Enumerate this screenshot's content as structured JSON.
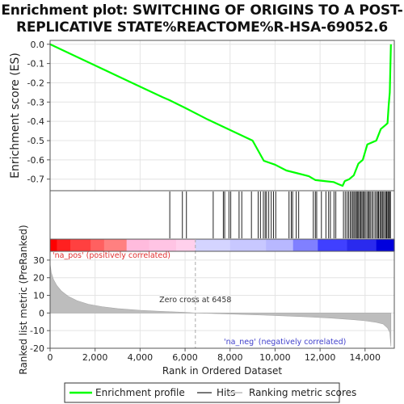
{
  "title_lines": [
    "Enrichment plot: SWITCHING OF ORIGINS TO A POST-",
    "REPLICATIVE STATE%REACTOME%R-HSA-69052.6"
  ],
  "chart_data": [
    {
      "type": "line",
      "name": "enrichment-profile",
      "ylabel": "Enrichment score (ES)",
      "xlim": [
        0,
        15300
      ],
      "ylim": [
        -0.76,
        0.02
      ],
      "yticks": [
        0.0,
        -0.1,
        -0.2,
        -0.3,
        -0.4,
        -0.5,
        -0.6,
        -0.7
      ],
      "ytick_labels": [
        "0.0",
        "-0.1",
        "-0.2",
        "-0.3",
        "-0.4",
        "-0.5",
        "-0.6",
        "-0.7"
      ],
      "color": "#00ff00",
      "x": [
        0,
        1000,
        2000,
        3000,
        4000,
        5000,
        5300,
        6000,
        7000,
        8000,
        9000,
        9500,
        10000,
        10500,
        11000,
        11500,
        11800,
        12200,
        12600,
        12800,
        13000,
        13100,
        13300,
        13500,
        13700,
        13900,
        14000,
        14100,
        14300,
        14500,
        14700,
        14900,
        15000,
        15050,
        15100,
        15150
      ],
      "y": [
        0.0,
        -0.055,
        -0.11,
        -0.165,
        -0.22,
        -0.275,
        -0.29,
        -0.33,
        -0.39,
        -0.445,
        -0.5,
        -0.605,
        -0.625,
        -0.655,
        -0.67,
        -0.685,
        -0.705,
        -0.71,
        -0.715,
        -0.725,
        -0.735,
        -0.71,
        -0.7,
        -0.68,
        -0.62,
        -0.6,
        -0.56,
        -0.52,
        -0.51,
        -0.5,
        -0.44,
        -0.42,
        -0.41,
        -0.32,
        -0.25,
        0.0
      ]
    },
    {
      "type": "hits",
      "name": "hits",
      "x": [
        5320,
        5880,
        6060,
        7250,
        7700,
        7760,
        7950,
        8030,
        8400,
        8520,
        8950,
        9250,
        9350,
        9480,
        9560,
        9620,
        9720,
        9830,
        9930,
        10030,
        10620,
        10720,
        10780,
        10940,
        11050,
        11700,
        11790,
        11850,
        12060,
        12260,
        12380,
        12460,
        12620,
        12700,
        13040,
        13120,
        13200,
        13270,
        13340,
        13400,
        13460,
        13510,
        13570,
        13620,
        13660,
        13710,
        13760,
        13810,
        13860,
        13910,
        13960,
        14010,
        14080,
        14140,
        14180,
        14230,
        14300,
        14360,
        14440,
        14500,
        14560,
        14600,
        14660,
        14700,
        14760,
        14800,
        14860,
        14920,
        14960,
        15010,
        15050,
        15090,
        15130
      ]
    },
    {
      "type": "area",
      "name": "ranked-list-metric",
      "xlabel": "Rank in Ordered Dataset",
      "ylabel": "Ranked list metric (PreRanked)",
      "xlim": [
        0,
        15300
      ],
      "ylim": [
        -20,
        35
      ],
      "xticks": [
        0,
        2000,
        4000,
        6000,
        8000,
        10000,
        12000,
        14000
      ],
      "xtick_labels": [
        "0",
        "2,000",
        "4,000",
        "6,000",
        "8,000",
        "10,000",
        "12,000",
        "14,000"
      ],
      "yticks": [
        30,
        20,
        10,
        0,
        -10,
        -20
      ],
      "ytick_labels": [
        "30",
        "20",
        "10",
        "0",
        "-10",
        "-20"
      ],
      "x": [
        0,
        50,
        150,
        300,
        500,
        800,
        1200,
        1700,
        2300,
        3000,
        4000,
        5000,
        6000,
        6458,
        7500,
        8500,
        9500,
        10500,
        11500,
        12500,
        13500,
        14000,
        14500,
        14800,
        15000,
        15100,
        15150
      ],
      "y": [
        28,
        23,
        19,
        15.5,
        12.5,
        9.5,
        7,
        5,
        3.6,
        2.5,
        1.5,
        0.9,
        0.4,
        0,
        -0.4,
        -0.8,
        -1.2,
        -1.7,
        -2.2,
        -2.9,
        -3.8,
        -4.4,
        -5.3,
        -6.2,
        -8.5,
        -11,
        -19
      ],
      "zero_cross_label": "Zero cross at 6458",
      "zero_cross_x": 6458,
      "pos_label": "'na_pos' (positively correlated)",
      "neg_label": "'na_neg' (negatively correlated)"
    }
  ],
  "legend": {
    "items": [
      {
        "label": "Enrichment profile",
        "color": "#00ff00"
      },
      {
        "label": "Hits",
        "color": "#777777"
      },
      {
        "label": "Ranking metric scores",
        "color": "#cccccc"
      }
    ]
  }
}
